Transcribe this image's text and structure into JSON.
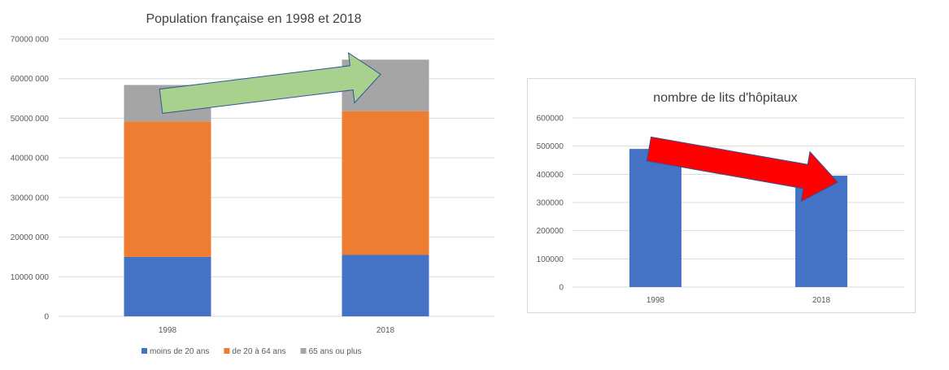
{
  "chart_data": [
    {
      "type": "bar",
      "stacked": true,
      "title": "Population française en 1998 et 2018",
      "categories": [
        "1998",
        "2018"
      ],
      "series": [
        {
          "name": "moins de 20 ans",
          "values": [
            15000000,
            15500000
          ],
          "color": "#4472c4"
        },
        {
          "name": "de 20 à 64 ans",
          "values": [
            34200000,
            36300000
          ],
          "color": "#ed7d31"
        },
        {
          "name": "65 ans ou plus",
          "values": [
            9200000,
            13000000
          ],
          "color": "#a5a5a5"
        }
      ],
      "ylim": [
        0,
        70000000
      ],
      "yticks": [
        0,
        10000000,
        20000000,
        30000000,
        40000000,
        50000000,
        60000000,
        70000000
      ],
      "ytick_labels": [
        "0",
        "10000 000",
        "20000 000",
        "30000 000",
        "40000 000",
        "50000 000",
        "60000 000",
        "70000 000"
      ],
      "grid": true,
      "legend": "bottom",
      "annotation": {
        "shape": "arrow",
        "direction": "up",
        "color": "#a9d18e"
      }
    },
    {
      "type": "bar",
      "title": "nombre de lits d'hôpitaux",
      "categories": [
        "1998",
        "2018"
      ],
      "values": [
        490000,
        395000
      ],
      "color": "#4472c4",
      "ylim": [
        0,
        600000
      ],
      "yticks": [
        0,
        100000,
        200000,
        300000,
        400000,
        500000,
        600000
      ],
      "ytick_labels": [
        "0",
        "100000",
        "200000",
        "300000",
        "400000",
        "500000",
        "600000"
      ],
      "grid": true,
      "annotation": {
        "shape": "arrow",
        "direction": "down",
        "color": "#ff0000"
      }
    }
  ]
}
